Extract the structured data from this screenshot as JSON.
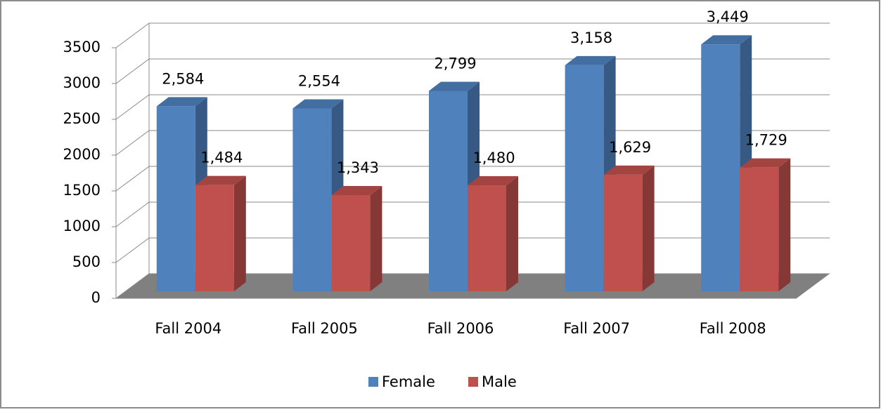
{
  "chart_data": {
    "type": "bar3d",
    "categories": [
      "Fall 2004",
      "Fall 2005",
      "Fall 2006",
      "Fall 2007",
      "Fall 2008"
    ],
    "series": [
      {
        "name": "Female",
        "color": "#4f81bd",
        "values": [
          2584,
          2554,
          2799,
          3158,
          3449
        ],
        "value_labels": [
          "2,584",
          "2,554",
          "2,799",
          "3,158",
          "3,449"
        ]
      },
      {
        "name": "Male",
        "color": "#c0504d",
        "values": [
          1484,
          1343,
          1480,
          1629,
          1729
        ],
        "value_labels": [
          "1,484",
          "1,343",
          "1,480",
          "1,629",
          "1,729"
        ]
      }
    ],
    "ylim": [
      0,
      3500
    ],
    "yticks": [
      0,
      500,
      1000,
      1500,
      2000,
      2500,
      3000,
      3500
    ],
    "grid": true,
    "legend": "bottom"
  }
}
